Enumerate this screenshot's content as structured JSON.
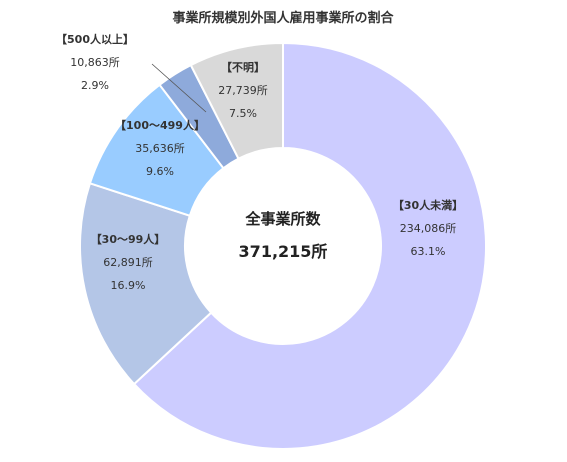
{
  "chart_data": {
    "type": "pie",
    "title": "事業所規模別外国人雇用事業所の割合",
    "center_label": "全事業所数",
    "center_value": "371,215所",
    "slices": [
      {
        "category": "【30人未満】",
        "count": "234,086所",
        "percent": "63.1%",
        "value": 63.1,
        "color": "#ccccff"
      },
      {
        "category": "【30～99人】",
        "count": "62,891所",
        "percent": "16.9%",
        "value": 16.9,
        "color": "#b4c6e7"
      },
      {
        "category": "【100～499人】",
        "count": "35,636所",
        "percent": "9.6%",
        "value": 9.6,
        "color": "#99ccff"
      },
      {
        "category": "【500人以上】",
        "count": "10,863所",
        "percent": "2.9%",
        "value": 2.9,
        "color": "#8eaadb"
      },
      {
        "category": "【不明】",
        "count": "27,739所",
        "percent": "7.5%",
        "value": 7.5,
        "color": "#d9d9d9"
      }
    ]
  }
}
